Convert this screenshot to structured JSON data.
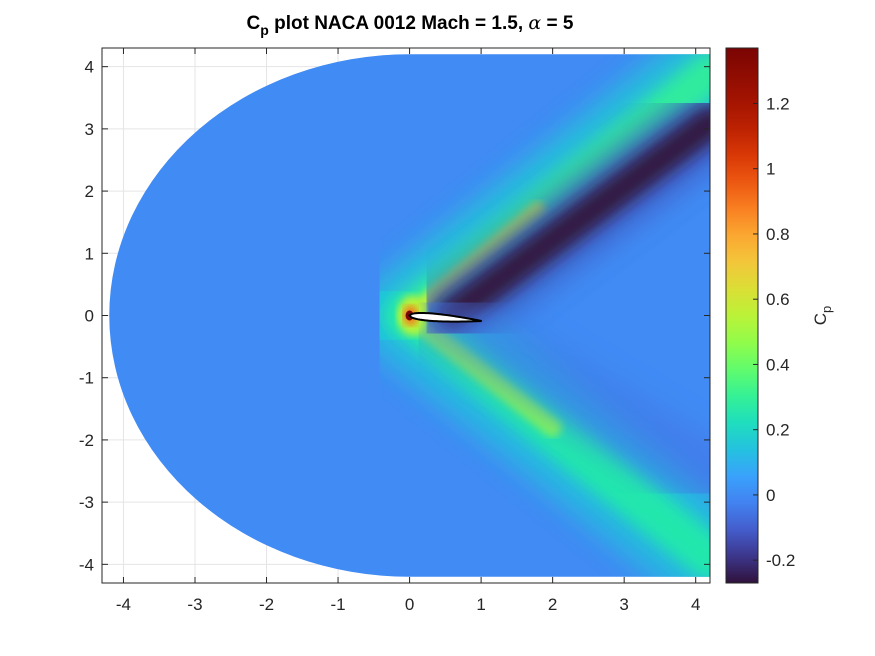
{
  "chart_data": {
    "type": "heatmap",
    "title": {
      "prefix": "C",
      "subscript": "p",
      "middle": " plot NACA 0012 Mach = 1.5, ",
      "alpha_symbol": "α",
      "suffix": " = 5"
    },
    "xlabel": "",
    "ylabel": "",
    "xlim": [
      -4.3,
      4.2
    ],
    "ylim": [
      -4.3,
      4.3
    ],
    "x_ticks": [
      -4,
      -3,
      -2,
      -1,
      0,
      1,
      2,
      3,
      4
    ],
    "y_ticks": [
      -4,
      -3,
      -2,
      -1,
      0,
      1,
      2,
      3,
      4
    ],
    "grid": true,
    "domain": {
      "shape": "half-disc + rectangle",
      "radius": 4.2,
      "x_max": 4.2
    },
    "airfoil": {
      "name": "NACA 0012",
      "leading_edge": [
        0,
        0
      ],
      "trailing_edge": [
        1,
        0
      ],
      "chord": 1,
      "thickness": 0.12
    },
    "flow": {
      "mach": 1.5,
      "alpha_deg": 5
    },
    "freestream_cp": 0,
    "features": [
      {
        "name": "stagnation region",
        "x": 0,
        "y": 0,
        "cp": 1.35
      },
      {
        "name": "upper bow shock",
        "from": [
          0,
          0
        ],
        "to": [
          4.2,
          3.9
        ],
        "cp_peak": 0.55
      },
      {
        "name": "lower bow shock",
        "from": [
          0,
          0
        ],
        "to": [
          4.2,
          -3.9
        ],
        "cp_peak": 0.45
      },
      {
        "name": "upper expansion wake",
        "from": [
          0.6,
          0.02
        ],
        "to": [
          4.2,
          3.1
        ],
        "cp_min": -0.27
      }
    ],
    "colorbar": {
      "label_main": "C",
      "label_sub": "p",
      "cmin": -0.27,
      "cmax": 1.37,
      "ticks": [
        -0.2,
        0,
        0.2,
        0.4,
        0.6,
        0.8,
        1,
        1.2
      ],
      "colormap": "turbo"
    }
  }
}
